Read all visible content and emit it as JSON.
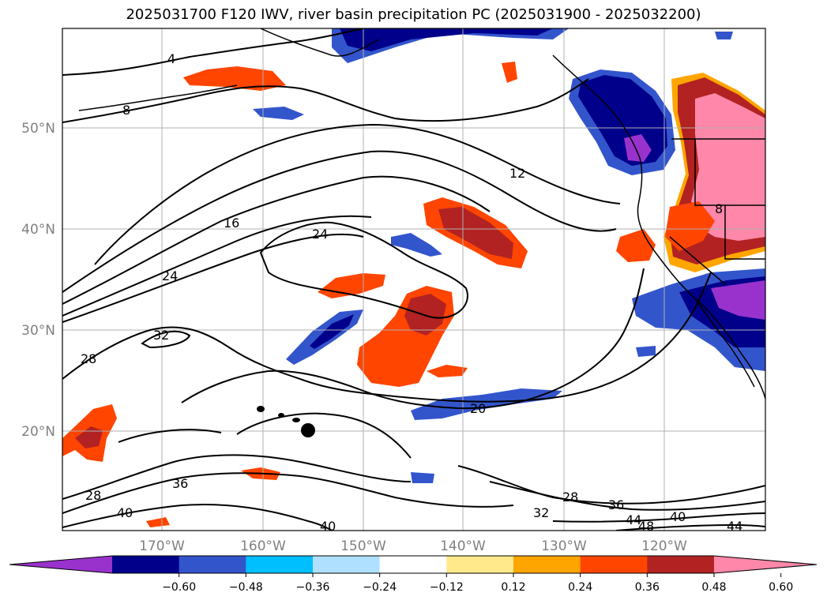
{
  "title": "2025031700 F120 IWV, river basin precipitation PC (2025031900 - 2025032200)",
  "axes": {
    "lat_ticks": [
      "50°N",
      "40°N",
      "30°N",
      "20°N"
    ],
    "lon_ticks": [
      "170°W",
      "160°W",
      "150°W",
      "140°W",
      "130°W",
      "120°W"
    ]
  },
  "contour_labels": [
    "4",
    "8",
    "12",
    "16",
    "24",
    "24",
    "32",
    "28",
    "20",
    "36",
    "28",
    "40",
    "28",
    "32",
    "36",
    "40",
    "44",
    "48",
    "40",
    "44",
    "8"
  ],
  "colorbar": {
    "ticks": [
      "−0.60",
      "−0.48",
      "−0.36",
      "−0.24",
      "−0.12",
      "0.12",
      "0.24",
      "0.36",
      "0.48",
      "0.60"
    ],
    "colors": [
      "#9932cc",
      "#00008b",
      "#3355cc",
      "#00bfff",
      "#b0e0ff",
      "#ffffff",
      "#ffe98a",
      "#ffa500",
      "#ff4500",
      "#b22222",
      "#ff88aa"
    ]
  }
}
